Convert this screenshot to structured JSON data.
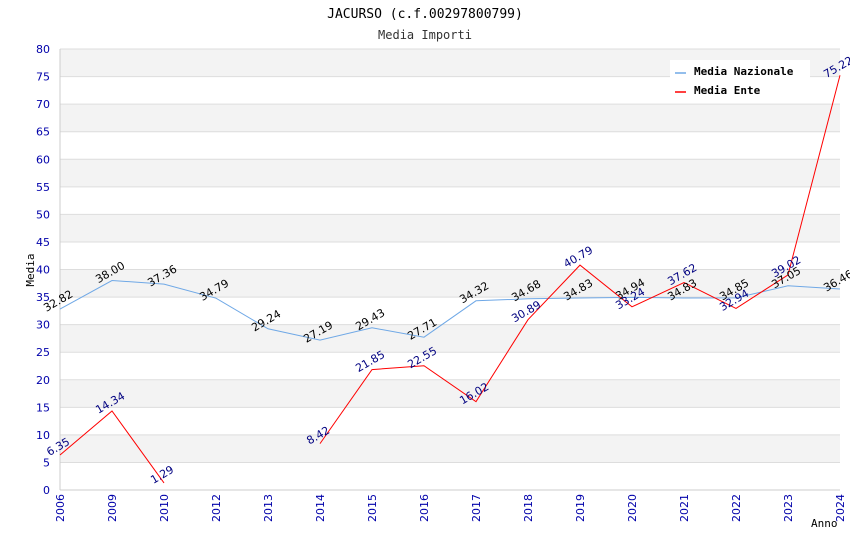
{
  "chart_data": {
    "type": "line",
    "title": "JACURSO (c.f.00297800799)",
    "subtitle": "Media Importi",
    "xlabel": "Anno",
    "ylabel": "Media",
    "ylim": [
      0,
      80
    ],
    "yticks": [
      0,
      5,
      10,
      15,
      20,
      25,
      30,
      35,
      40,
      45,
      50,
      55,
      60,
      65,
      70,
      75,
      80
    ],
    "categories": [
      "2006",
      "2009",
      "2010",
      "2012",
      "2013",
      "2014",
      "2015",
      "2016",
      "2017",
      "2018",
      "2019",
      "2020",
      "2021",
      "2022",
      "2023",
      "2024"
    ],
    "legend_position": "top-right",
    "series": [
      {
        "name": "Media Nazionale",
        "color": "#6fa8e6",
        "values": [
          32.82,
          38.0,
          37.36,
          34.79,
          29.24,
          27.19,
          29.43,
          27.71,
          34.32,
          34.68,
          34.83,
          34.94,
          34.83,
          34.85,
          37.05,
          36.46
        ],
        "labels": [
          "32.82",
          "38.00",
          "37.36",
          "34.79",
          "29.24",
          "27.19",
          "29.43",
          "27.71",
          "34.32",
          "34.68",
          "34.83",
          "34.94",
          "34.83",
          "34.85",
          "37.05",
          "36.46"
        ]
      },
      {
        "name": "Media Ente",
        "color": "#ff0000",
        "values": [
          6.35,
          14.34,
          1.29,
          null,
          null,
          8.42,
          21.85,
          22.55,
          16.02,
          30.89,
          40.79,
          33.24,
          37.62,
          32.94,
          39.02,
          75.22
        ],
        "labels": [
          "6.35",
          "14.34",
          "1.29",
          null,
          null,
          "8.42",
          "21.85",
          "22.55",
          "16.02",
          "30.89",
          "40.79",
          "33.24",
          "37.62",
          "32.94",
          "39.02",
          "75.22"
        ]
      }
    ]
  },
  "colors": {
    "band": "#f3f3f3",
    "grid": "#dddddd",
    "tick_text": "#0000aa"
  }
}
